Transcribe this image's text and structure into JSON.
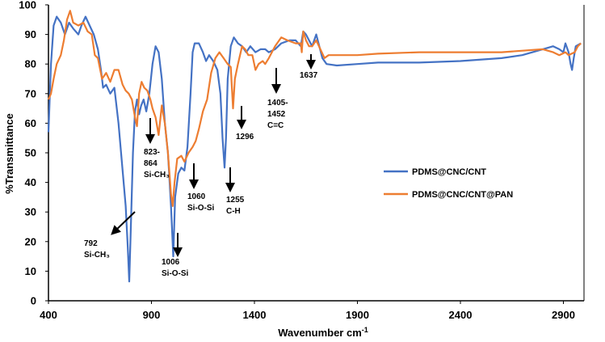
{
  "chart_data": {
    "type": "line",
    "title": "",
    "xlabel": "Wavenumber  cm",
    "xlabel_superscript": "-1",
    "ylabel": "%Transmittance",
    "xlim": [
      400,
      3000
    ],
    "ylim": [
      0,
      100
    ],
    "x_ticks": [
      400,
      900,
      1400,
      1900,
      2400,
      2900
    ],
    "y_ticks": [
      0,
      10,
      20,
      30,
      40,
      50,
      60,
      70,
      80,
      90,
      100
    ],
    "grid": false,
    "legend_position": "right",
    "series": [
      {
        "name": "PDMS@CNC/CNT",
        "color": "#4472C4",
        "points": [
          [
            400,
            57
          ],
          [
            412,
            80
          ],
          [
            425,
            93
          ],
          [
            440,
            96
          ],
          [
            460,
            94
          ],
          [
            480,
            90
          ],
          [
            500,
            94
          ],
          [
            520,
            92
          ],
          [
            545,
            90
          ],
          [
            560,
            93
          ],
          [
            580,
            96
          ],
          [
            600,
            93
          ],
          [
            620,
            90
          ],
          [
            640,
            85
          ],
          [
            655,
            78
          ],
          [
            665,
            72
          ],
          [
            680,
            73
          ],
          [
            700,
            70
          ],
          [
            720,
            72
          ],
          [
            740,
            60
          ],
          [
            760,
            44
          ],
          [
            775,
            32
          ],
          [
            785,
            18
          ],
          [
            792,
            6.5
          ],
          [
            800,
            25
          ],
          [
            810,
            50
          ],
          [
            820,
            64
          ],
          [
            830,
            68
          ],
          [
            840,
            63
          ],
          [
            850,
            66
          ],
          [
            862,
            68
          ],
          [
            875,
            64
          ],
          [
            890,
            70
          ],
          [
            905,
            80
          ],
          [
            920,
            86
          ],
          [
            935,
            84
          ],
          [
            950,
            75
          ],
          [
            965,
            60
          ],
          [
            980,
            50
          ],
          [
            995,
            32
          ],
          [
            1006,
            15
          ],
          [
            1015,
            35
          ],
          [
            1030,
            43
          ],
          [
            1045,
            45
          ],
          [
            1060,
            44
          ],
          [
            1075,
            52
          ],
          [
            1090,
            70
          ],
          [
            1100,
            84
          ],
          [
            1110,
            87
          ],
          [
            1130,
            87
          ],
          [
            1150,
            84
          ],
          [
            1165,
            81
          ],
          [
            1180,
            83
          ],
          [
            1200,
            81
          ],
          [
            1220,
            78
          ],
          [
            1235,
            70
          ],
          [
            1245,
            55
          ],
          [
            1255,
            45
          ],
          [
            1262,
            55
          ],
          [
            1270,
            75
          ],
          [
            1285,
            86
          ],
          [
            1300,
            89
          ],
          [
            1320,
            87
          ],
          [
            1340,
            86
          ],
          [
            1360,
            84
          ],
          [
            1380,
            86
          ],
          [
            1405,
            84
          ],
          [
            1430,
            85
          ],
          [
            1452,
            85
          ],
          [
            1470,
            84
          ],
          [
            1500,
            85
          ],
          [
            1530,
            87
          ],
          [
            1570,
            88
          ],
          [
            1600,
            88
          ],
          [
            1625,
            86
          ],
          [
            1637,
            91
          ],
          [
            1650,
            90
          ],
          [
            1665,
            88
          ],
          [
            1680,
            86
          ],
          [
            1700,
            90
          ],
          [
            1715,
            86
          ],
          [
            1730,
            82
          ],
          [
            1750,
            80
          ],
          [
            1800,
            79.5
          ],
          [
            1900,
            80
          ],
          [
            2000,
            80.5
          ],
          [
            2200,
            80.5
          ],
          [
            2400,
            81
          ],
          [
            2600,
            82
          ],
          [
            2700,
            83
          ],
          [
            2800,
            85
          ],
          [
            2850,
            86
          ],
          [
            2880,
            85
          ],
          [
            2900,
            84
          ],
          [
            2910,
            87
          ],
          [
            2925,
            84
          ],
          [
            2935,
            80
          ],
          [
            2942,
            78
          ],
          [
            2950,
            82
          ],
          [
            2960,
            86
          ],
          [
            2985,
            87
          ]
        ]
      },
      {
        "name": "PDMS@CNC/CNT@PAN",
        "color": "#ED7D31",
        "points": [
          [
            400,
            68
          ],
          [
            412,
            70
          ],
          [
            425,
            75
          ],
          [
            440,
            80
          ],
          [
            460,
            83
          ],
          [
            475,
            88
          ],
          [
            490,
            95
          ],
          [
            505,
            98
          ],
          [
            520,
            94
          ],
          [
            545,
            93
          ],
          [
            570,
            94
          ],
          [
            590,
            91
          ],
          [
            610,
            90
          ],
          [
            625,
            83
          ],
          [
            640,
            82
          ],
          [
            660,
            75
          ],
          [
            680,
            77
          ],
          [
            700,
            74
          ],
          [
            720,
            78
          ],
          [
            740,
            78
          ],
          [
            760,
            73
          ],
          [
            775,
            71
          ],
          [
            790,
            70
          ],
          [
            805,
            68
          ],
          [
            820,
            62
          ],
          [
            830,
            59
          ],
          [
            840,
            70
          ],
          [
            852,
            74
          ],
          [
            865,
            72
          ],
          [
            880,
            71
          ],
          [
            895,
            68
          ],
          [
            905,
            65
          ],
          [
            920,
            62
          ],
          [
            935,
            56
          ],
          [
            950,
            66
          ],
          [
            965,
            60
          ],
          [
            980,
            50
          ],
          [
            995,
            36
          ],
          [
            1003,
            32
          ],
          [
            1012,
            40
          ],
          [
            1025,
            48
          ],
          [
            1045,
            49
          ],
          [
            1060,
            47
          ],
          [
            1080,
            50
          ],
          [
            1100,
            52
          ],
          [
            1115,
            54
          ],
          [
            1130,
            58
          ],
          [
            1150,
            64
          ],
          [
            1170,
            68
          ],
          [
            1190,
            77
          ],
          [
            1210,
            82
          ],
          [
            1230,
            84
          ],
          [
            1250,
            82
          ],
          [
            1270,
            80
          ],
          [
            1285,
            79
          ],
          [
            1296,
            65
          ],
          [
            1305,
            75
          ],
          [
            1320,
            80
          ],
          [
            1340,
            86
          ],
          [
            1355,
            85
          ],
          [
            1370,
            83
          ],
          [
            1390,
            83
          ],
          [
            1405,
            78
          ],
          [
            1420,
            80
          ],
          [
            1440,
            81
          ],
          [
            1452,
            80
          ],
          [
            1470,
            82
          ],
          [
            1500,
            86
          ],
          [
            1530,
            89
          ],
          [
            1560,
            88
          ],
          [
            1600,
            87
          ],
          [
            1625,
            87
          ],
          [
            1630,
            84
          ],
          [
            1637,
            91
          ],
          [
            1650,
            88
          ],
          [
            1665,
            86
          ],
          [
            1680,
            86
          ],
          [
            1700,
            88
          ],
          [
            1720,
            85
          ],
          [
            1740,
            82
          ],
          [
            1760,
            83
          ],
          [
            1900,
            83
          ],
          [
            2000,
            83.5
          ],
          [
            2200,
            84
          ],
          [
            2400,
            84
          ],
          [
            2600,
            84
          ],
          [
            2800,
            85
          ],
          [
            2850,
            84
          ],
          [
            2880,
            83
          ],
          [
            2910,
            84
          ],
          [
            2925,
            83
          ],
          [
            2940,
            83.5
          ],
          [
            2955,
            84
          ],
          [
            2970,
            86
          ],
          [
            2985,
            87
          ]
        ]
      }
    ],
    "annotations": [
      {
        "id": "a792",
        "lines": [
          "792",
          "Si-CH₃"
        ]
      },
      {
        "id": "a823",
        "lines": [
          "823-",
          "864",
          "Si-CH₃"
        ]
      },
      {
        "id": "a1006",
        "lines": [
          "1006",
          "Si-O-Si"
        ]
      },
      {
        "id": "a1060",
        "lines": [
          "1060",
          "Si-O-Si"
        ]
      },
      {
        "id": "a1255",
        "lines": [
          "1255",
          "C-H"
        ]
      },
      {
        "id": "a1296",
        "lines": [
          "1296"
        ]
      },
      {
        "id": "a1405",
        "lines": [
          "1405-",
          "1452",
          "C=C"
        ]
      },
      {
        "id": "a1637",
        "lines": [
          "1637"
        ]
      }
    ]
  }
}
